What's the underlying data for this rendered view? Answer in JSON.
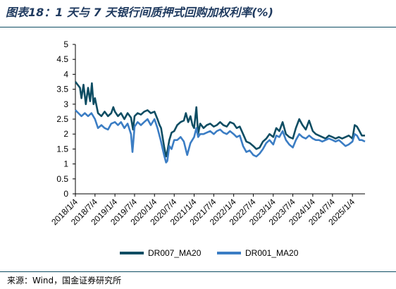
{
  "title": "图表18：1 天与 7 天银行间质押式回购加权利率(%)",
  "source": "来源：Wind，国金证券研究所",
  "chart_data": {
    "type": "line",
    "title": "图表18：1 天与 7 天银行间质押式回购加权利率(%)",
    "ylim": [
      0,
      5
    ],
    "yticks": [
      "0",
      "0.5",
      "1",
      "1.5",
      "2",
      "2.5",
      "3",
      "3.5",
      "4",
      "4.5",
      "5"
    ],
    "xlim": [
      "2018/1/4",
      "2025/4/30"
    ],
    "xticks": [
      "2018/1/4",
      "2018/7/4",
      "2019/1/4",
      "2019/7/4",
      "2020/1/4",
      "2020/7/4",
      "2021/1/4",
      "2021/7/4",
      "2022/1/4",
      "2022/7/4",
      "2023/1/4",
      "2023/7/4",
      "2024/1/4",
      "2024/7/4",
      "2025/1/4"
    ],
    "grid": false,
    "legend_position": "bottom",
    "series": [
      {
        "name": "DR007_MA20",
        "color": "#0e4d63",
        "points": [
          [
            "2018/1/4",
            3.75
          ],
          [
            "2018/2/15",
            3.55
          ],
          [
            "2018/3/1",
            3.2
          ],
          [
            "2018/3/20",
            3.65
          ],
          [
            "2018/4/10",
            3.0
          ],
          [
            "2018/5/1",
            3.55
          ],
          [
            "2018/5/20",
            3.1
          ],
          [
            "2018/6/5",
            3.7
          ],
          [
            "2018/6/20",
            3.0
          ],
          [
            "2018/7/4",
            3.2
          ],
          [
            "2018/8/1",
            2.7
          ],
          [
            "2018/9/1",
            2.6
          ],
          [
            "2018/10/1",
            2.75
          ],
          [
            "2018/11/1",
            2.6
          ],
          [
            "2018/12/1",
            2.7
          ],
          [
            "2018/12/20",
            2.9
          ],
          [
            "2019/1/4",
            2.75
          ],
          [
            "2019/2/1",
            2.6
          ],
          [
            "2019/3/1",
            2.7
          ],
          [
            "2019/4/1",
            2.5
          ],
          [
            "2019/5/1",
            2.7
          ],
          [
            "2019/6/1",
            2.55
          ],
          [
            "2019/6/20",
            2.15
          ],
          [
            "2019/7/4",
            2.6
          ],
          [
            "2019/8/1",
            2.7
          ],
          [
            "2019/9/1",
            2.65
          ],
          [
            "2019/10/1",
            2.75
          ],
          [
            "2019/11/1",
            2.8
          ],
          [
            "2019/12/1",
            2.7
          ],
          [
            "2020/1/4",
            2.75
          ],
          [
            "2020/2/1",
            2.5
          ],
          [
            "2020/2/20",
            2.3
          ],
          [
            "2020/3/5",
            2.2
          ],
          [
            "2020/4/1",
            1.6
          ],
          [
            "2020/4/20",
            1.25
          ],
          [
            "2020/5/1",
            1.4
          ],
          [
            "2020/5/20",
            1.8
          ],
          [
            "2020/6/10",
            2.05
          ],
          [
            "2020/7/4",
            2.1
          ],
          [
            "2020/8/1",
            2.3
          ],
          [
            "2020/9/1",
            2.4
          ],
          [
            "2020/10/1",
            2.45
          ],
          [
            "2020/10/20",
            2.7
          ],
          [
            "2020/11/10",
            2.4
          ],
          [
            "2020/12/1",
            2.6
          ],
          [
            "2020/12/20",
            2.3
          ],
          [
            "2021/1/4",
            2.2
          ],
          [
            "2021/1/25",
            2.9
          ],
          [
            "2021/2/10",
            2.0
          ],
          [
            "2021/3/1",
            2.35
          ],
          [
            "2021/4/1",
            2.2
          ],
          [
            "2021/5/1",
            2.3
          ],
          [
            "2021/6/1",
            2.35
          ],
          [
            "2021/7/4",
            2.25
          ],
          [
            "2021/8/1",
            2.3
          ],
          [
            "2021/9/1",
            2.4
          ],
          [
            "2021/10/1",
            2.3
          ],
          [
            "2021/11/1",
            2.25
          ],
          [
            "2021/12/1",
            2.4
          ],
          [
            "2022/1/4",
            2.35
          ],
          [
            "2022/2/1",
            2.2
          ],
          [
            "2022/3/1",
            2.25
          ],
          [
            "2022/4/1",
            2.0
          ],
          [
            "2022/5/1",
            1.75
          ],
          [
            "2022/6/1",
            1.7
          ],
          [
            "2022/7/4",
            1.6
          ],
          [
            "2022/8/1",
            1.5
          ],
          [
            "2022/9/1",
            1.55
          ],
          [
            "2022/10/1",
            1.75
          ],
          [
            "2022/11/1",
            1.85
          ],
          [
            "2022/12/1",
            2.0
          ],
          [
            "2023/1/4",
            1.9
          ],
          [
            "2023/2/1",
            2.2
          ],
          [
            "2023/3/1",
            2.1
          ],
          [
            "2023/4/1",
            2.4
          ],
          [
            "2023/5/1",
            2.0
          ],
          [
            "2023/6/1",
            1.9
          ],
          [
            "2023/7/4",
            1.85
          ],
          [
            "2023/8/1",
            2.2
          ],
          [
            "2023/9/1",
            2.5
          ],
          [
            "2023/10/1",
            2.3
          ],
          [
            "2023/11/1",
            2.15
          ],
          [
            "2023/12/1",
            2.45
          ],
          [
            "2024/1/4",
            2.1
          ],
          [
            "2024/2/1",
            2.0
          ],
          [
            "2024/3/1",
            1.95
          ],
          [
            "2024/4/1",
            1.9
          ],
          [
            "2024/5/1",
            1.85
          ],
          [
            "2024/6/1",
            1.95
          ],
          [
            "2024/7/4",
            1.9
          ],
          [
            "2024/8/1",
            1.85
          ],
          [
            "2024/9/1",
            1.9
          ],
          [
            "2024/10/1",
            1.85
          ],
          [
            "2024/11/1",
            1.9
          ],
          [
            "2024/12/1",
            1.95
          ],
          [
            "2025/1/4",
            1.85
          ],
          [
            "2025/1/25",
            2.3
          ],
          [
            "2025/2/15",
            2.25
          ],
          [
            "2025/3/10",
            2.1
          ],
          [
            "2025/4/1",
            1.95
          ],
          [
            "2025/4/30",
            1.95
          ]
        ]
      },
      {
        "name": "DR001_MA20",
        "color": "#3b7dc4",
        "points": [
          [
            "2018/1/4",
            2.8
          ],
          [
            "2018/2/1",
            2.7
          ],
          [
            "2018/3/1",
            2.6
          ],
          [
            "2018/4/1",
            2.7
          ],
          [
            "2018/5/1",
            2.6
          ],
          [
            "2018/6/1",
            2.7
          ],
          [
            "2018/7/4",
            2.5
          ],
          [
            "2018/8/1",
            2.2
          ],
          [
            "2018/9/1",
            2.3
          ],
          [
            "2018/10/1",
            2.2
          ],
          [
            "2018/11/1",
            2.15
          ],
          [
            "2018/12/1",
            2.35
          ],
          [
            "2019/1/4",
            2.4
          ],
          [
            "2019/2/1",
            2.3
          ],
          [
            "2019/3/1",
            2.4
          ],
          [
            "2019/4/1",
            2.2
          ],
          [
            "2019/5/1",
            2.35
          ],
          [
            "2019/6/1",
            2.0
          ],
          [
            "2019/6/15",
            1.4
          ],
          [
            "2019/7/4",
            2.25
          ],
          [
            "2019/8/1",
            2.4
          ],
          [
            "2019/9/1",
            2.3
          ],
          [
            "2019/10/1",
            2.4
          ],
          [
            "2019/11/1",
            2.5
          ],
          [
            "2019/12/1",
            2.3
          ],
          [
            "2020/1/4",
            2.5
          ],
          [
            "2020/2/1",
            2.2
          ],
          [
            "2020/3/1",
            1.8
          ],
          [
            "2020/4/1",
            1.3
          ],
          [
            "2020/4/20",
            1.05
          ],
          [
            "2020/5/1",
            1.1
          ],
          [
            "2020/5/20",
            1.6
          ],
          [
            "2020/6/10",
            1.5
          ],
          [
            "2020/7/4",
            1.8
          ],
          [
            "2020/8/1",
            1.8
          ],
          [
            "2020/9/1",
            1.9
          ],
          [
            "2020/10/1",
            1.75
          ],
          [
            "2020/11/1",
            1.3
          ],
          [
            "2020/12/1",
            1.7
          ],
          [
            "2021/1/4",
            1.9
          ],
          [
            "2021/1/25",
            2.2
          ],
          [
            "2021/2/10",
            1.9
          ],
          [
            "2021/3/1",
            2.0
          ],
          [
            "2021/4/1",
            2.0
          ],
          [
            "2021/5/1",
            2.05
          ],
          [
            "2021/6/1",
            2.1
          ],
          [
            "2021/7/4",
            2.0
          ],
          [
            "2021/8/1",
            2.1
          ],
          [
            "2021/9/1",
            2.15
          ],
          [
            "2021/10/1",
            2.05
          ],
          [
            "2021/11/1",
            2.0
          ],
          [
            "2021/12/1",
            2.1
          ],
          [
            "2022/1/4",
            2.0
          ],
          [
            "2022/2/1",
            1.9
          ],
          [
            "2022/3/1",
            1.95
          ],
          [
            "2022/4/1",
            1.6
          ],
          [
            "2022/5/1",
            1.4
          ],
          [
            "2022/6/1",
            1.45
          ],
          [
            "2022/7/4",
            1.3
          ],
          [
            "2022/8/1",
            1.25
          ],
          [
            "2022/9/1",
            1.35
          ],
          [
            "2022/10/1",
            1.5
          ],
          [
            "2022/11/1",
            1.7
          ],
          [
            "2022/12/1",
            1.8
          ],
          [
            "2023/1/4",
            1.65
          ],
          [
            "2023/2/1",
            1.95
          ],
          [
            "2023/3/1",
            1.9
          ],
          [
            "2023/4/1",
            2.1
          ],
          [
            "2023/5/1",
            1.8
          ],
          [
            "2023/6/1",
            1.65
          ],
          [
            "2023/7/4",
            1.55
          ],
          [
            "2023/8/1",
            1.8
          ],
          [
            "2023/9/1",
            2.0
          ],
          [
            "2023/10/1",
            1.9
          ],
          [
            "2023/11/1",
            1.85
          ],
          [
            "2023/12/1",
            1.95
          ],
          [
            "2024/1/4",
            1.85
          ],
          [
            "2024/2/1",
            1.8
          ],
          [
            "2024/3/1",
            1.8
          ],
          [
            "2024/4/1",
            1.75
          ],
          [
            "2024/5/1",
            1.8
          ],
          [
            "2024/6/1",
            1.85
          ],
          [
            "2024/7/4",
            1.8
          ],
          [
            "2024/8/1",
            1.75
          ],
          [
            "2024/9/1",
            1.8
          ],
          [
            "2024/10/1",
            1.7
          ],
          [
            "2024/11/1",
            1.6
          ],
          [
            "2024/12/1",
            1.65
          ],
          [
            "2025/1/4",
            1.75
          ],
          [
            "2025/1/25",
            2.0
          ],
          [
            "2025/2/15",
            1.95
          ],
          [
            "2025/3/10",
            1.8
          ],
          [
            "2025/4/1",
            1.8
          ],
          [
            "2025/4/30",
            1.75
          ]
        ]
      }
    ]
  }
}
